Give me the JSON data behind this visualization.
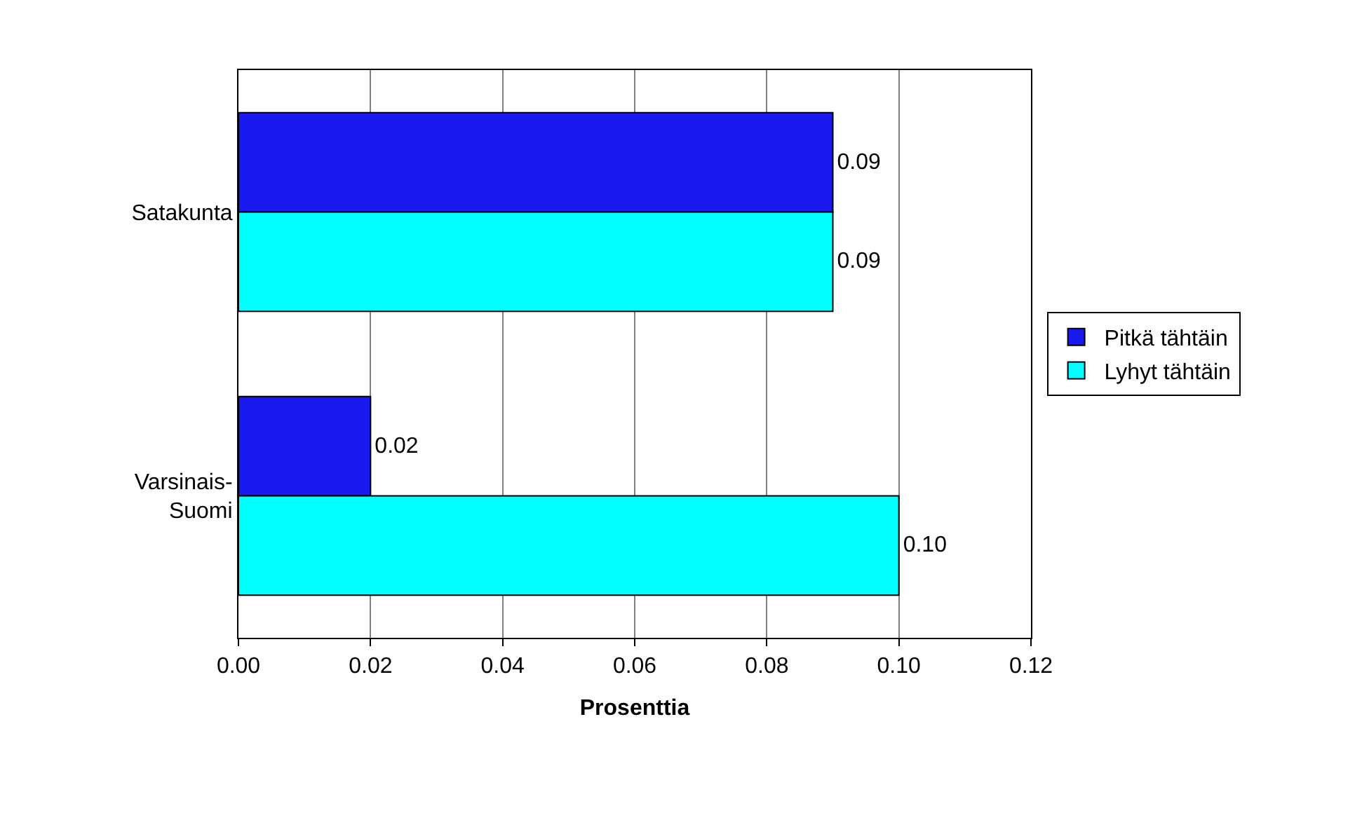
{
  "chart_data": {
    "type": "bar",
    "orientation": "horizontal",
    "xlabel": "Prosenttia",
    "categories": [
      "Satakunta",
      "Varsinais-Suomi"
    ],
    "series": [
      {
        "name": "Pitkä tähtäin",
        "color": "#1a1af0",
        "values": [
          0.09,
          0.02
        ],
        "value_labels": [
          "0.09",
          "0.02"
        ]
      },
      {
        "name": "Lyhyt tähtäin",
        "color": "#00ffff",
        "values": [
          0.09,
          0.1
        ],
        "value_labels": [
          "0.09",
          "0.10"
        ]
      }
    ],
    "xlim": [
      0,
      0.12
    ],
    "xticks": [
      {
        "value": 0,
        "label": "0.00"
      },
      {
        "value": 0.02,
        "label": "0.02"
      },
      {
        "value": 0.04,
        "label": "0.04"
      },
      {
        "value": 0.06,
        "label": "0.06"
      },
      {
        "value": 0.08,
        "label": "0.08"
      },
      {
        "value": 0.1,
        "label": "0.10"
      },
      {
        "value": 0.12,
        "label": "0.12"
      }
    ],
    "grid": "x",
    "legend": "right"
  }
}
